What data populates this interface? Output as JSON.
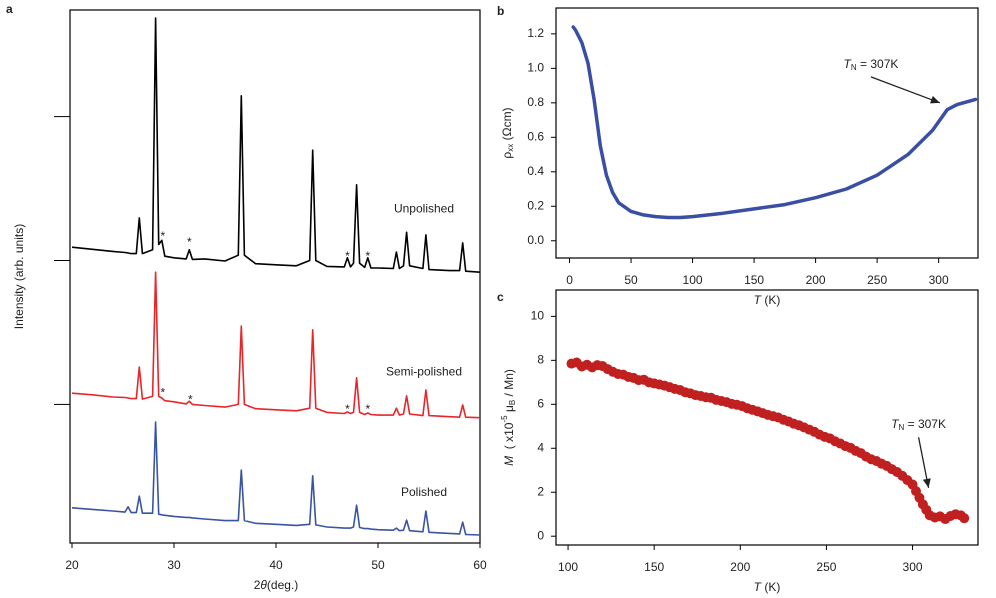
{
  "chart_data": [
    {
      "type": "line",
      "panel": "a",
      "xlabel": [
        {
          "text": "2"
        },
        {
          "text": "θ",
          "style": "italic"
        },
        {
          "text": "(deg.)"
        }
      ],
      "ylabel": "Intensity (arb. units)",
      "xlim": [
        20,
        60
      ],
      "xticks": [
        20,
        30,
        40,
        50,
        60
      ],
      "ylim": [
        0,
        100
      ],
      "yticks": [
        26,
        53,
        80
      ],
      "x": [
        20,
        22,
        24,
        25.2,
        25.5,
        25.8,
        26.3,
        26.6,
        26.9,
        27.9,
        28.2,
        28.5,
        28.8,
        29.1,
        30,
        31.2,
        31.5,
        31.8,
        33,
        35,
        36.3,
        36.6,
        36.9,
        38,
        40,
        42,
        43.3,
        43.6,
        43.9,
        45,
        46.7,
        47.0,
        47.3,
        47.6,
        47.9,
        48.2,
        48.7,
        49.0,
        49.3,
        50,
        51.5,
        51.8,
        52.1,
        52.5,
        52.8,
        53.1,
        54.4,
        54.7,
        55.0,
        57,
        58.0,
        58.3,
        58.6,
        60
      ],
      "series": [
        {
          "name": "Unpolished",
          "color": "#000000",
          "values": [
            55.5,
            55.1,
            54.7,
            54.5,
            54.4,
            54.3,
            54.3,
            61,
            54.3,
            55,
            98.5,
            56,
            56.8,
            53.8,
            53.5,
            53.3,
            55,
            53.2,
            53.3,
            52.9,
            54,
            83.9,
            54,
            52.4,
            52.2,
            52,
            53,
            73.7,
            53,
            51.9,
            51.8,
            53.5,
            51.8,
            52.5,
            67.2,
            52.5,
            51.7,
            53.5,
            51.6,
            51.6,
            51.5,
            54.6,
            51.5,
            52,
            58.3,
            52,
            51.5,
            57.8,
            51.3,
            51.1,
            51.1,
            56.3,
            51,
            50.8
          ]
        },
        {
          "name": "Semi-polished",
          "color": "#e8262a",
          "values": [
            28.1,
            27.8,
            27.4,
            27.3,
            27.2,
            27.1,
            27.1,
            33,
            27,
            27.5,
            50.8,
            27.5,
            27.2,
            26.7,
            26.5,
            26.1,
            26.6,
            26,
            25.8,
            25.5,
            26,
            40.7,
            26,
            25.2,
            25,
            24.8,
            25.3,
            40,
            25.3,
            24.5,
            24.3,
            24.6,
            24.3,
            24.5,
            31,
            24.5,
            24.1,
            24.4,
            24.1,
            24,
            24,
            25.3,
            24,
            24.2,
            27.6,
            24.2,
            23.9,
            28.7,
            23.9,
            23.7,
            23.6,
            25.9,
            23.6,
            23.5
          ]
        },
        {
          "name": "Polished",
          "color": "#3a54a4",
          "values": [
            6.6,
            6.3,
            6,
            5.8,
            6.8,
            5.7,
            5.7,
            8.8,
            5.6,
            5.6,
            22.7,
            5.4,
            5.3,
            5.2,
            5,
            4.8,
            4.8,
            4.7,
            4.5,
            4.2,
            4.2,
            13.7,
            4.2,
            3.7,
            3.5,
            3.3,
            3.5,
            12.6,
            3.4,
            3,
            2.8,
            2.8,
            2.8,
            3,
            7.1,
            2.9,
            2.7,
            2.7,
            2.6,
            2.5,
            2.4,
            2.8,
            2.3,
            2.4,
            4.3,
            2.3,
            2.1,
            6,
            2,
            1.8,
            1.7,
            3.9,
            1.6,
            1.5
          ]
        }
      ],
      "annotations": [
        {
          "text": "*",
          "x": 28.9,
          "y": 57.4
        },
        {
          "text": "*",
          "x": 31.5,
          "y": 56.3
        },
        {
          "text": "*",
          "x": 47.0,
          "y": 53.7
        },
        {
          "text": "*",
          "x": 49.0,
          "y": 53.7
        },
        {
          "text": "*",
          "x": 28.9,
          "y": 28.1
        },
        {
          "text": "*",
          "x": 31.6,
          "y": 26.8
        },
        {
          "text": "*",
          "x": 47.0,
          "y": 25
        },
        {
          "text": "*",
          "x": 49.0,
          "y": 25
        }
      ]
    },
    {
      "type": "line",
      "panel": "b",
      "xlabel": [
        {
          "text": "T",
          "style": "italic"
        },
        {
          "text": " (K)"
        }
      ],
      "ylabel": [
        {
          "text": "ρ"
        },
        {
          "text": "xx",
          "style": "sub"
        },
        {
          "text": " (Ωcm)"
        }
      ],
      "xlim": [
        -11,
        332
      ],
      "xticks": [
        0,
        50,
        100,
        150,
        200,
        250,
        300
      ],
      "ylim": [
        -0.1,
        1.35
      ],
      "yticks": [
        {
          "value": 0,
          "label": "0.0"
        },
        0.2,
        0.4,
        0.6,
        0.8,
        {
          "value": 1,
          "label": "1.0"
        },
        1.2
      ],
      "color": "#3a4fa3",
      "x": [
        3,
        5,
        10,
        15,
        20,
        25,
        30,
        35,
        40,
        50,
        60,
        70,
        80,
        90,
        100,
        125,
        150,
        175,
        200,
        225,
        250,
        275,
        295,
        307,
        315,
        330
      ],
      "values": [
        1.24,
        1.22,
        1.15,
        1.03,
        0.82,
        0.55,
        0.38,
        0.28,
        0.22,
        0.17,
        0.15,
        0.14,
        0.135,
        0.135,
        0.14,
        0.16,
        0.185,
        0.21,
        0.25,
        0.3,
        0.38,
        0.5,
        0.64,
        0.76,
        0.79,
        0.82
      ],
      "annotations": [
        {
          "parts": [
            {
              "text": "T",
              "style": "italic"
            },
            {
              "text": "N",
              "style": "sub"
            },
            {
              "text": " = 307K"
            }
          ],
          "x": 245,
          "y": 1.02,
          "arrow_to": [
            301,
            0.8
          ]
        }
      ]
    },
    {
      "type": "scatter",
      "panel": "c",
      "xlabel": [
        {
          "text": "T",
          "style": "italic"
        },
        {
          "text": " (K)"
        }
      ],
      "ylabel": [
        {
          "text": "M",
          "style": "italic"
        },
        {
          "text": "  ( x10"
        },
        {
          "text": "-5",
          "style": "sup"
        },
        {
          "text": " μ"
        },
        {
          "text": "B",
          "style": "sub"
        },
        {
          "text": " / Mn)"
        }
      ],
      "xlim": [
        93,
        338
      ],
      "xticks": [
        100,
        150,
        200,
        250,
        300
      ],
      "ylim": [
        -0.4,
        11.2
      ],
      "yticks": [
        0,
        2,
        4,
        6,
        8,
        10
      ],
      "color": "#c0201f",
      "x": [
        102,
        105,
        108,
        111,
        114,
        117,
        120,
        123,
        126,
        129,
        132,
        135,
        138,
        141,
        144,
        147,
        150,
        153,
        156,
        159,
        162,
        165,
        168,
        171,
        174,
        177,
        180,
        183,
        186,
        189,
        192,
        195,
        198,
        201,
        204,
        207,
        210,
        213,
        216,
        219,
        222,
        225,
        228,
        231,
        234,
        237,
        240,
        243,
        246,
        249,
        252,
        255,
        258,
        261,
        264,
        267,
        270,
        273,
        276,
        279,
        282,
        285,
        288,
        291,
        294,
        297,
        300,
        302,
        304,
        306,
        308,
        310,
        313,
        316,
        319,
        322,
        325,
        328,
        330
      ],
      "values": [
        7.85,
        7.9,
        7.72,
        7.8,
        7.68,
        7.78,
        7.74,
        7.6,
        7.48,
        7.38,
        7.35,
        7.25,
        7.2,
        7.1,
        7.12,
        7.0,
        6.95,
        6.9,
        6.85,
        6.78,
        6.7,
        6.65,
        6.55,
        6.5,
        6.42,
        6.38,
        6.32,
        6.3,
        6.2,
        6.15,
        6.1,
        6.02,
        5.98,
        5.92,
        5.82,
        5.75,
        5.68,
        5.6,
        5.52,
        5.46,
        5.4,
        5.3,
        5.22,
        5.12,
        5.05,
        4.95,
        4.85,
        4.75,
        4.62,
        4.52,
        4.45,
        4.32,
        4.22,
        4.1,
        4.02,
        3.88,
        3.78,
        3.62,
        3.5,
        3.42,
        3.3,
        3.2,
        3.05,
        2.92,
        2.75,
        2.55,
        2.35,
        2.05,
        1.75,
        1.45,
        1.2,
        0.95,
        0.85,
        0.9,
        0.78,
        0.92,
        1.0,
        0.95,
        0.82
      ],
      "annotations": [
        {
          "parts": [
            {
              "text": "T",
              "style": "italic"
            },
            {
              "text": "N",
              "style": "sub"
            },
            {
              "text": " = 307K"
            }
          ],
          "x": 303.5,
          "y": 5.05,
          "arrow_to": [
            309.3,
            2.2
          ]
        }
      ]
    }
  ]
}
